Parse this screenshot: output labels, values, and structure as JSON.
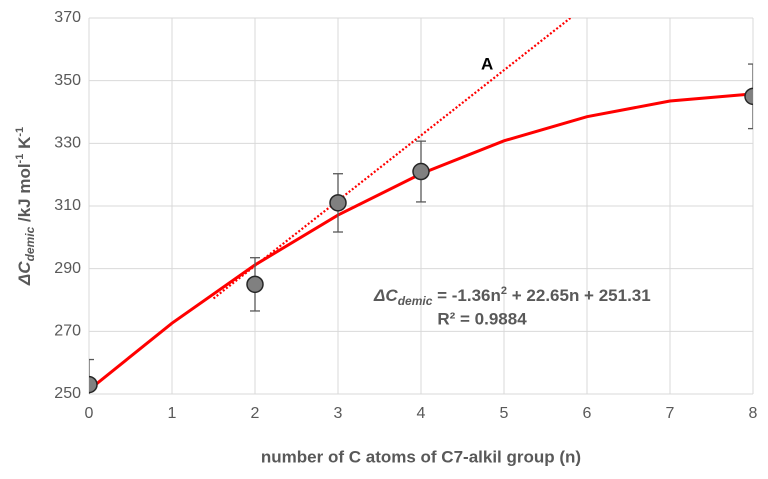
{
  "chart_data": {
    "type": "scatter",
    "x_label": "number of C atoms of C7-alkil group (n)",
    "y_label_parts": [
      "ΔC",
      "demic",
      " /kJ mol",
      "-1",
      " K",
      "-1"
    ],
    "xlim": [
      0,
      8
    ],
    "xticks": [
      0,
      1,
      2,
      3,
      4,
      5,
      6,
      7,
      8
    ],
    "ylim": [
      250,
      370
    ],
    "yticks": [
      250,
      270,
      290,
      310,
      330,
      350,
      370
    ],
    "grid": true,
    "series": [
      {
        "kind": "points",
        "color": "#808080",
        "x": [
          0,
          2,
          3,
          4,
          8
        ],
        "values": [
          253,
          285,
          311,
          321,
          345
        ],
        "errors": [
          8,
          8.5,
          9.3,
          9.7,
          10.3
        ]
      },
      {
        "kind": "curve",
        "color": "#ff0000",
        "x": [
          0,
          1,
          2,
          3,
          4,
          5,
          6,
          7,
          8
        ],
        "values": [
          251.31,
          272.6,
          291.2,
          307.1,
          320.3,
          330.8,
          338.5,
          343.5,
          345.8
        ]
      },
      {
        "kind": "dotted",
        "color": "#ff0000",
        "x": [
          1.5,
          5.8
        ],
        "values": [
          280.5,
          370
        ]
      }
    ],
    "line_label": "A",
    "equation_parts": [
      "ΔC",
      "demic",
      "  = -1.36n",
      "2",
      " + 22.65n + 251.31"
    ],
    "r_squared": "R² = 0.9884"
  }
}
